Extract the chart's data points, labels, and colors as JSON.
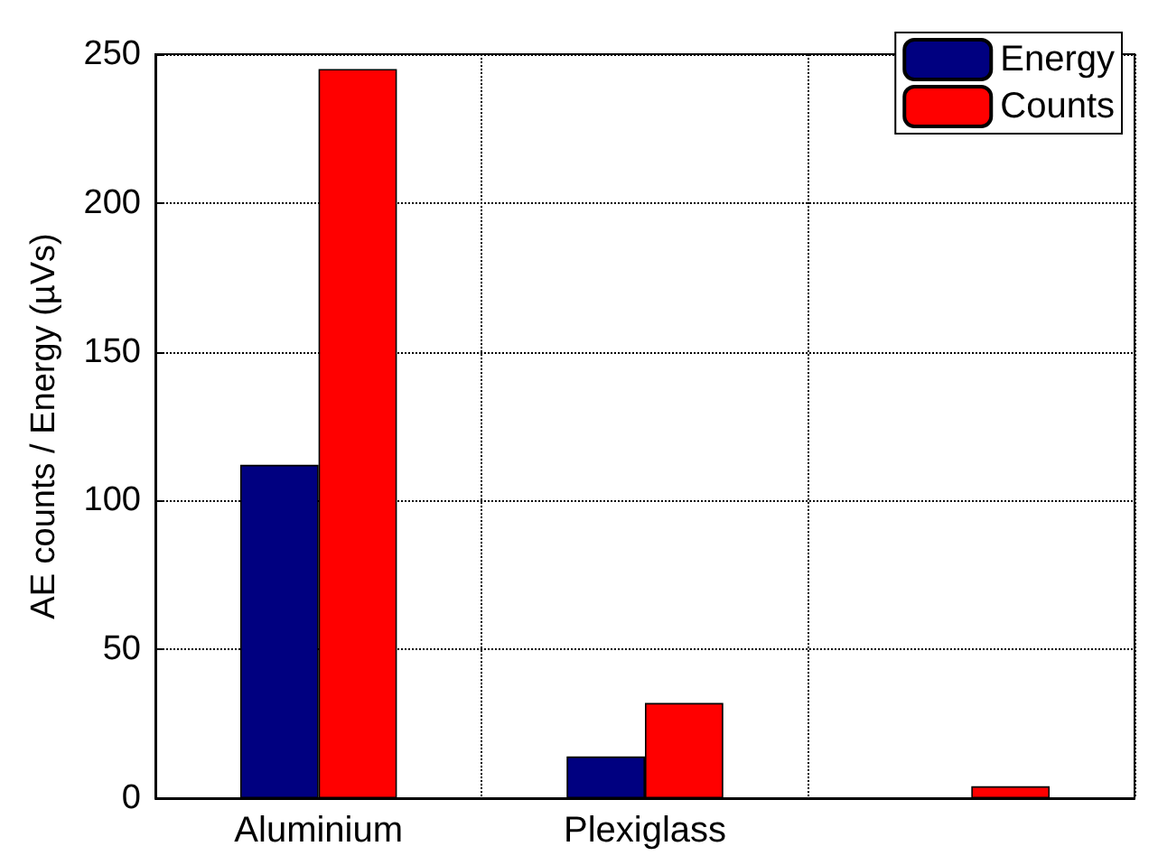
{
  "chart_data": {
    "type": "bar",
    "ylabel": "AE counts / Energy (µVs)",
    "categories": [
      "Aluminium",
      "Plexiglass",
      null
    ],
    "series": [
      {
        "name": "Energy",
        "color": "#000080",
        "values": [
          112,
          14,
          null
        ]
      },
      {
        "name": "Counts",
        "color": "#ff0000",
        "values": [
          245,
          32,
          4
        ]
      }
    ],
    "ylim": [
      0,
      250
    ],
    "yticks": [
      0,
      50,
      100,
      150,
      200,
      250
    ],
    "grid": true,
    "legend": "top right"
  }
}
